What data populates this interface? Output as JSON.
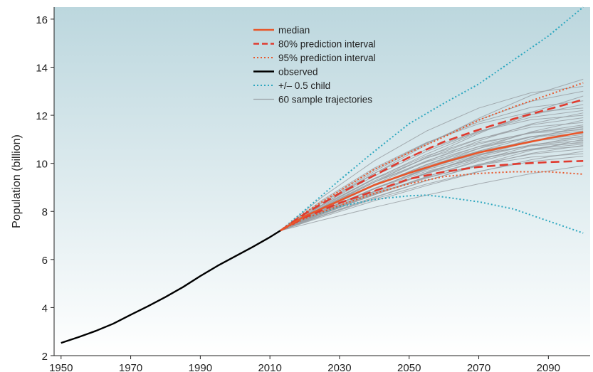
{
  "chart_data": {
    "type": "line",
    "title": "",
    "xlabel": "",
    "ylabel": "Population (billion)",
    "xlim": [
      1948,
      2102
    ],
    "ylim": [
      2,
      16.5
    ],
    "x_ticks": [
      "1950",
      "1970",
      "1990",
      "2010",
      "2030",
      "2050",
      "2070",
      "2090"
    ],
    "y_ticks": [
      "2",
      "4",
      "6",
      "8",
      "10",
      "12",
      "14",
      "16"
    ],
    "grid": false,
    "legend_position": "top-center",
    "legend": [
      {
        "key": "median",
        "label": "median"
      },
      {
        "key": "pi80",
        "label": "80% prediction interval"
      },
      {
        "key": "pi95",
        "label": "95% prediction interval"
      },
      {
        "key": "observed",
        "label": "observed"
      },
      {
        "key": "child",
        "label": "+/– 0.5 child"
      },
      {
        "key": "samples",
        "label": "60 sample trajectories"
      }
    ],
    "colors": {
      "median": "#e8562a",
      "pi80": "#e03a2e",
      "pi95": "#e8562a",
      "observed": "#000000",
      "child": "#2ca7bf",
      "samples": "#9aa0a4",
      "bg_top": "#bcd7de",
      "bg_bottom": "#ffffff"
    },
    "series": [
      {
        "key": "observed",
        "x": [
          1950,
          1955,
          1960,
          1965,
          1970,
          1975,
          1980,
          1985,
          1990,
          1995,
          2000,
          2005,
          2010,
          2013
        ],
        "y": [
          2.53,
          2.77,
          3.03,
          3.33,
          3.7,
          4.06,
          4.44,
          4.85,
          5.31,
          5.74,
          6.13,
          6.52,
          6.93,
          7.2
        ]
      },
      {
        "key": "median",
        "x": [
          2013,
          2020,
          2030,
          2040,
          2050,
          2060,
          2070,
          2080,
          2090,
          2100
        ],
        "y": [
          7.2,
          7.8,
          8.45,
          9.1,
          9.6,
          10.05,
          10.45,
          10.75,
          11.05,
          11.3
        ]
      },
      {
        "key": "pi80_upper",
        "x": [
          2013,
          2020,
          2030,
          2040,
          2050,
          2060,
          2070,
          2080,
          2090,
          2100
        ],
        "y": [
          7.2,
          7.9,
          8.75,
          9.5,
          10.25,
          10.9,
          11.4,
          11.85,
          12.25,
          12.65
        ]
      },
      {
        "key": "pi80_lower",
        "x": [
          2013,
          2020,
          2030,
          2040,
          2050,
          2060,
          2070,
          2080,
          2090,
          2100
        ],
        "y": [
          7.2,
          7.75,
          8.35,
          8.85,
          9.35,
          9.65,
          9.85,
          9.97,
          10.05,
          10.1
        ]
      },
      {
        "key": "pi95_upper",
        "x": [
          2013,
          2020,
          2030,
          2040,
          2050,
          2060,
          2070,
          2080,
          2090,
          2100
        ],
        "y": [
          7.2,
          7.95,
          8.85,
          9.75,
          10.45,
          11.1,
          11.8,
          12.35,
          12.85,
          13.35
        ]
      },
      {
        "key": "pi95_lower",
        "x": [
          2013,
          2020,
          2030,
          2040,
          2050,
          2060,
          2070,
          2080,
          2090,
          2100
        ],
        "y": [
          7.2,
          7.7,
          8.25,
          8.75,
          9.15,
          9.45,
          9.58,
          9.65,
          9.65,
          9.55
        ]
      },
      {
        "key": "child_upper",
        "x": [
          2013,
          2020,
          2030,
          2040,
          2050,
          2060,
          2070,
          2080,
          2090,
          2100
        ],
        "y": [
          7.2,
          8.05,
          9.3,
          10.5,
          11.65,
          12.5,
          13.3,
          14.3,
          15.3,
          16.5
        ]
      },
      {
        "key": "child_lower",
        "x": [
          2013,
          2020,
          2030,
          2040,
          2050,
          2055,
          2060,
          2070,
          2080,
          2090,
          2100
        ],
        "y": [
          7.2,
          7.7,
          8.2,
          8.5,
          8.65,
          8.68,
          8.6,
          8.4,
          8.1,
          7.6,
          7.1
        ]
      }
    ],
    "samples": {
      "x": [
        2013,
        2025,
        2040,
        2055,
        2070,
        2085,
        2100
      ],
      "count": 60,
      "endpoints_2100": [
        9.9,
        10.3,
        10.4,
        10.5,
        10.6,
        10.7,
        10.75,
        10.8,
        10.85,
        10.9,
        10.95,
        11.0,
        11.05,
        11.1,
        11.15,
        11.2,
        11.25,
        11.3,
        11.35,
        11.4,
        11.45,
        11.5,
        11.55,
        11.6,
        11.7,
        11.8,
        11.9,
        12.0,
        12.1,
        12.2,
        12.3,
        12.45,
        12.6,
        12.8,
        13.0,
        13.2,
        13.5
      ]
    }
  }
}
